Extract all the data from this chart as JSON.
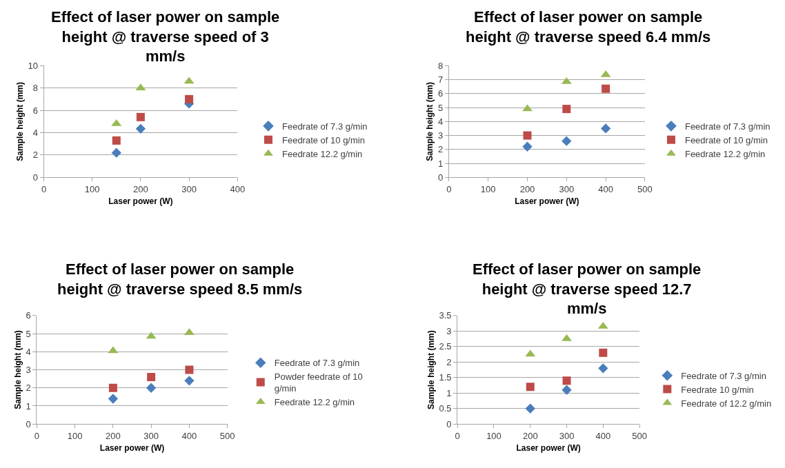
{
  "chart_data": [
    {
      "type": "scatter",
      "title": "Effect of laser power on sample height @ traverse speed of 3 mm/s",
      "xlabel": "Laser power (W)",
      "ylabel": "Sample height (mm)",
      "xlim": [
        0,
        400
      ],
      "xticks": [
        0,
        100,
        200,
        300,
        400
      ],
      "ylim": [
        0,
        10
      ],
      "yticks": [
        0,
        2,
        4,
        6,
        8,
        10
      ],
      "grid": "y",
      "legend": "right",
      "series": [
        {
          "name": "Feedrate of 7.3 g/min",
          "color": "#4a7ebb",
          "marker": "diamond",
          "x": [
            150,
            200,
            300
          ],
          "values": [
            2.2,
            4.35,
            6.6
          ]
        },
        {
          "name": "Feedrate of 10 g/min",
          "color": "#be4b48",
          "marker": "square",
          "x": [
            150,
            200,
            300
          ],
          "values": [
            3.3,
            5.4,
            7.0
          ]
        },
        {
          "name": "Feedrate 12.2 g/min",
          "color": "#98b954",
          "marker": "triangle",
          "x": [
            150,
            200,
            300
          ],
          "values": [
            4.8,
            8.0,
            8.6
          ]
        }
      ]
    },
    {
      "type": "scatter",
      "title": "Effect of laser power on sample height @ traverse speed 6.4 mm/s",
      "xlabel": "Laser power (W)",
      "ylabel": "Sample height (mm)",
      "xlim": [
        0,
        500
      ],
      "xticks": [
        0,
        100,
        200,
        300,
        400,
        500
      ],
      "ylim": [
        0,
        8
      ],
      "yticks": [
        0,
        1,
        2,
        3,
        4,
        5,
        6,
        7,
        8
      ],
      "grid": "y",
      "legend": "right",
      "series": [
        {
          "name": "Feedrate of 7.3 g/min",
          "color": "#4a7ebb",
          "marker": "diamond",
          "x": [
            200,
            300,
            400
          ],
          "values": [
            2.2,
            2.6,
            3.5
          ]
        },
        {
          "name": "Feedrate of 10 g/min",
          "color": "#be4b48",
          "marker": "square",
          "x": [
            200,
            300,
            400
          ],
          "values": [
            3.0,
            4.9,
            6.35
          ]
        },
        {
          "name": "Feedrate 12.2 g/min",
          "color": "#98b954",
          "marker": "triangle",
          "x": [
            200,
            300,
            400
          ],
          "values": [
            4.9,
            6.85,
            7.35
          ]
        }
      ]
    },
    {
      "type": "scatter",
      "title": "Effect of laser power on sample height @ traverse speed 8.5 mm/s",
      "xlabel": "Laser power (W)",
      "ylabel": "Sample height (mm)",
      "xlim": [
        0,
        500
      ],
      "xticks": [
        0,
        100,
        200,
        300,
        400,
        500
      ],
      "ylim": [
        0,
        6
      ],
      "yticks": [
        0,
        1,
        2,
        3,
        4,
        5,
        6
      ],
      "grid": "y",
      "legend": "right",
      "series": [
        {
          "name": "Feedrate of 7.3 g/min",
          "color": "#4a7ebb",
          "marker": "diamond",
          "x": [
            200,
            300,
            400
          ],
          "values": [
            1.4,
            2.0,
            2.4
          ]
        },
        {
          "name": "Powder feedrate of 10 g/min",
          "color": "#be4b48",
          "marker": "square",
          "x": [
            200,
            300,
            400
          ],
          "values": [
            2.0,
            2.6,
            3.0
          ]
        },
        {
          "name": "Feedrate 12.2 g/min",
          "color": "#98b954",
          "marker": "triangle",
          "x": [
            200,
            300,
            400
          ],
          "values": [
            4.05,
            4.85,
            5.05
          ]
        }
      ]
    },
    {
      "type": "scatter",
      "title": "Effect of laser power on sample height @ traverse speed 12.7 mm/s",
      "xlabel": "Laser power (W)",
      "ylabel": "Sample height (mm)",
      "xlim": [
        0,
        500
      ],
      "xticks": [
        0,
        100,
        200,
        300,
        400,
        500
      ],
      "ylim": [
        0,
        3.5
      ],
      "yticks": [
        0,
        0.5,
        1,
        1.5,
        2,
        2.5,
        3,
        3.5
      ],
      "grid": "y",
      "legend": "right",
      "series": [
        {
          "name": "Feedrate of 7.3 g/min",
          "color": "#4a7ebb",
          "marker": "diamond",
          "x": [
            200,
            300,
            400
          ],
          "values": [
            0.5,
            1.1,
            1.8
          ]
        },
        {
          "name": "Feedrate 10 g/min",
          "color": "#be4b48",
          "marker": "square",
          "x": [
            200,
            300,
            400
          ],
          "values": [
            1.2,
            1.4,
            2.3
          ]
        },
        {
          "name": "Feedrate of 12.2 g/min",
          "color": "#98b954",
          "marker": "triangle",
          "x": [
            200,
            300,
            400
          ],
          "values": [
            2.25,
            2.75,
            3.15
          ]
        }
      ]
    }
  ]
}
